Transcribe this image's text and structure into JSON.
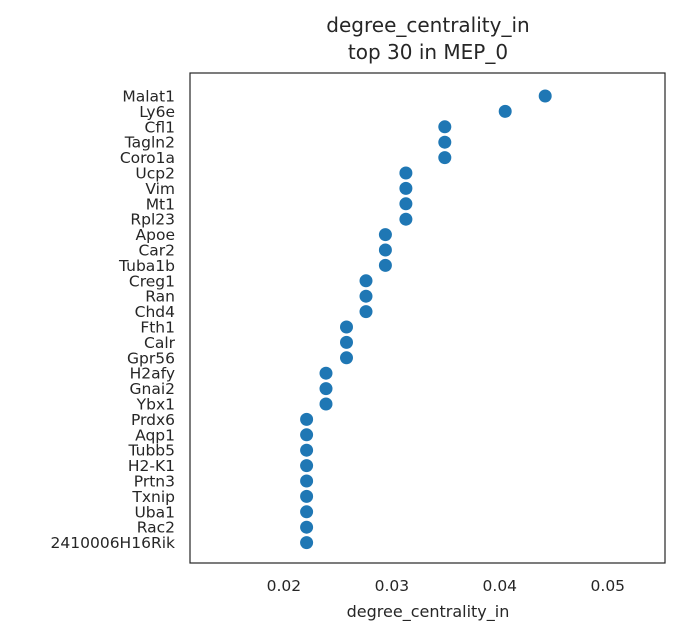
{
  "chart_data": {
    "type": "scatter",
    "title_line1": "degree_centrality_in",
    "title_line2": "top 30 in MEP_0",
    "xlabel": "degree_centrality_in",
    "ylabel": "",
    "xlim": [
      0.0113,
      0.0553
    ],
    "xticks": [
      "0.02",
      "0.03",
      "0.04",
      "0.05"
    ],
    "xtick_values": [
      0.02,
      0.03,
      0.04,
      0.05
    ],
    "grid": false,
    "marker_color": "#1f77b4",
    "categories": [
      "Malat1",
      "Ly6e",
      "Cfl1",
      "Tagln2",
      "Coro1a",
      "Ucp2",
      "Vim",
      "Mt1",
      "Rpl23",
      "Apoe",
      "Car2",
      "Tuba1b",
      "Creg1",
      "Ran",
      "Chd4",
      "Fth1",
      "Calr",
      "Gpr56",
      "H2afy",
      "Gnai2",
      "Ybx1",
      "Prdx6",
      "Aqp1",
      "Tubb5",
      "H2-K1",
      "Prtn3",
      "Txnip",
      "Uba1",
      "Rac2",
      "2410006H16Rik"
    ],
    "values": [
      0.0442,
      0.0405,
      0.0349,
      0.0349,
      0.0349,
      0.0313,
      0.0313,
      0.0313,
      0.0313,
      0.0294,
      0.0294,
      0.0294,
      0.0276,
      0.0276,
      0.0276,
      0.0258,
      0.0258,
      0.0258,
      0.0239,
      0.0239,
      0.0239,
      0.0221,
      0.0221,
      0.0221,
      0.0221,
      0.0221,
      0.0221,
      0.0221,
      0.0221,
      0.0221
    ]
  }
}
